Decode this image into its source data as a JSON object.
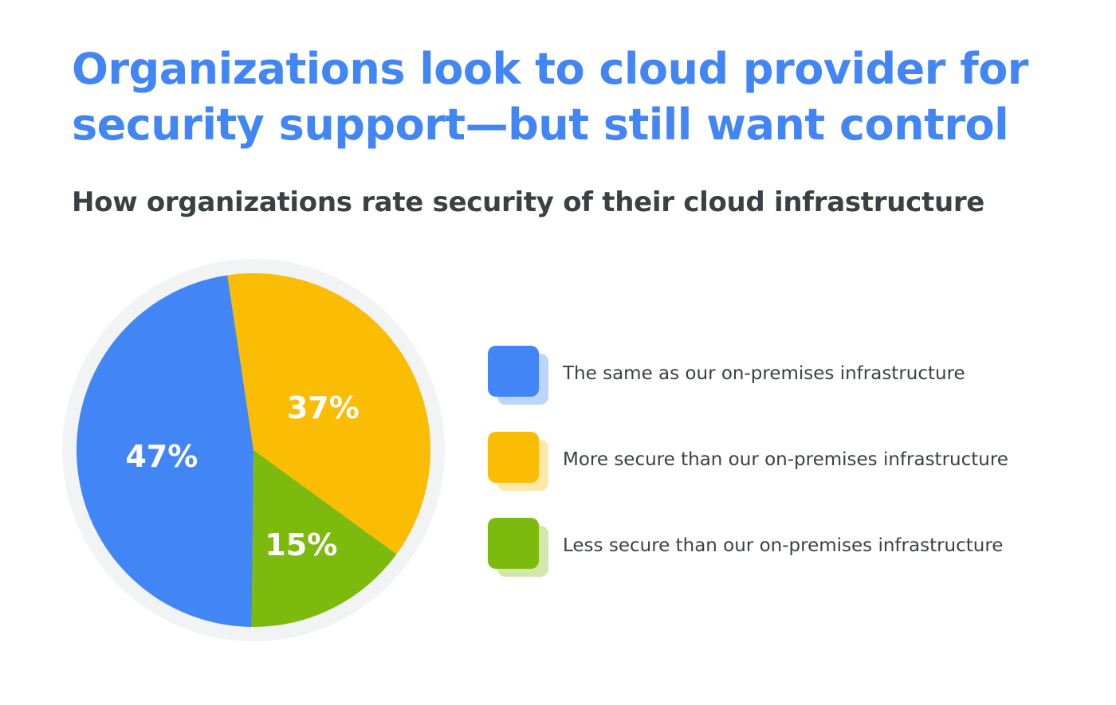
{
  "title": "Organizations look to cloud provider for security support—but still want control",
  "subtitle": "How organizations rate security of their cloud infrastructure",
  "chart_data": {
    "type": "pie",
    "title": "Organizations look to cloud provider for security support—but still want control",
    "subtitle": "How organizations rate security of their cloud infrastructure",
    "slices": [
      {
        "label": "The same as our on-premises infrastructure",
        "value": 47,
        "display": "47%",
        "color": "#4285f4"
      },
      {
        "label": "More secure than our on-premises infrastructure",
        "value": 37,
        "display": "37%",
        "color": "#fbbc04"
      },
      {
        "label": "Less secure than our on-premises infrastructure",
        "value": 15,
        "display": "15%",
        "color": "#7cbb0d"
      }
    ],
    "legend_position": "right"
  }
}
